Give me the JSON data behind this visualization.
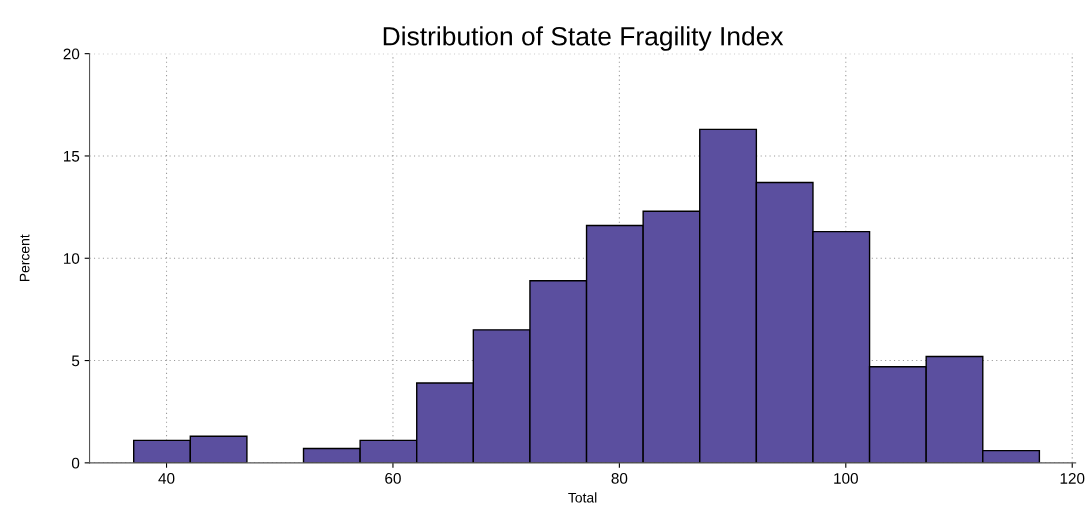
{
  "chart_data": {
    "type": "histogram",
    "title": "Distribution of State Fragility Index",
    "xlabel": "Total",
    "ylabel": "Percent",
    "bins": [
      37.1,
      42.1,
      47.1,
      52.1,
      57.1,
      62.1,
      67.1,
      72.1,
      77.1,
      82.1,
      87.1,
      92.1,
      97.1,
      102.1,
      107.1,
      112.1,
      117.1
    ],
    "values": [
      1.1,
      1.3,
      0,
      0.7,
      1.1,
      3.9,
      6.5,
      8.9,
      11.6,
      12.3,
      16.3,
      13.7,
      11.3,
      4.7,
      5.2,
      0.6
    ],
    "color": "#5b4f9f",
    "xlim": [
      33.2,
      120.3
    ],
    "xticks": [
      40,
      60,
      80,
      100,
      120
    ],
    "ylim": [
      0,
      20
    ],
    "yticks": [
      0,
      5,
      10,
      15,
      20
    ],
    "grid": true
  }
}
